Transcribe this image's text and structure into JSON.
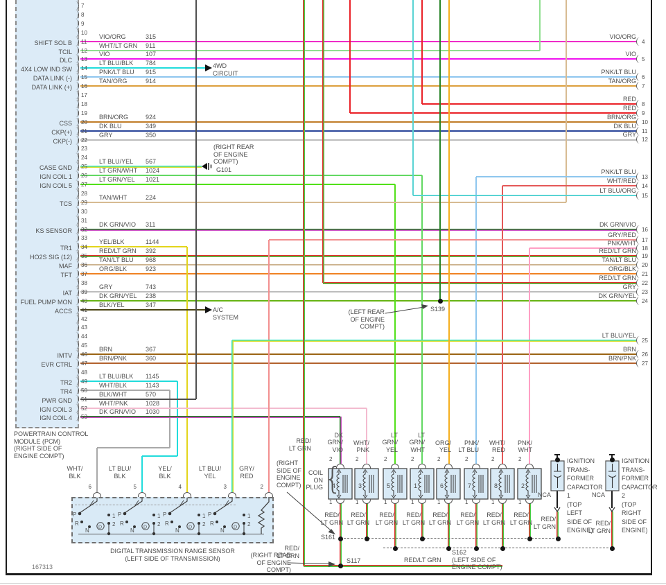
{
  "doc_number": "167313",
  "pcm": {
    "caption": "POWERTRAIN CONTROL\nMODULE (PCM)\n(RIGHT SIDE OF\nENGINE COMPT)",
    "pins": [
      {
        "n": "7"
      },
      {
        "n": "8"
      },
      {
        "n": "9"
      },
      {
        "n": "10"
      },
      {
        "n": "11",
        "label": "SHIFT SOL B",
        "wire": "VIO/ORG",
        "circuit": "315",
        "color": "VIO_ORG"
      },
      {
        "n": "12",
        "label": "TCIL",
        "wire": "WHT/LT GRN",
        "circuit": "911",
        "color": "WHT_LT_GRN"
      },
      {
        "n": "13",
        "label": "DLC",
        "wire": "VIO",
        "circuit": "107",
        "color": "VIO"
      },
      {
        "n": "14",
        "label": "4X4 LOW IND SW",
        "wire": "LT BLU/BLK",
        "circuit": "784",
        "color": "LT_BLU_BLK"
      },
      {
        "n": "15",
        "label": "DATA LINK (-)",
        "wire": "PNK/LT BLU",
        "circuit": "915",
        "color": "PNK_LT_BLU"
      },
      {
        "n": "16",
        "label": "DATA LINK (+)",
        "wire": "TAN/ORG",
        "circuit": "914",
        "color": "TAN_ORG"
      },
      {
        "n": "17"
      },
      {
        "n": "18"
      },
      {
        "n": "19"
      },
      {
        "n": "20",
        "label": "CSS",
        "wire": "BRN/ORG",
        "circuit": "924",
        "color": "BRN_ORG"
      },
      {
        "n": "21",
        "label": "CKP(+)",
        "wire": "DK BLU",
        "circuit": "349",
        "color": "DK_BLU"
      },
      {
        "n": "22",
        "label": "CKP(-)",
        "wire": "GRY",
        "circuit": "350",
        "color": "GRY"
      },
      {
        "n": "23"
      },
      {
        "n": "24"
      },
      {
        "n": "25",
        "label": "CASE GND",
        "wire": "LT BLU/YEL",
        "circuit": "567",
        "color": "LT_BLU_YEL"
      },
      {
        "n": "26",
        "label": "IGN COIL 1",
        "wire": "LT GRN/WHT",
        "circuit": "1024",
        "color": "LT_GRN_WHT"
      },
      {
        "n": "27",
        "label": "IGN COIL 5",
        "wire": "LT GRN/YEL",
        "circuit": "1021",
        "color": "LT_GRN_YEL"
      },
      {
        "n": "28"
      },
      {
        "n": "29",
        "label": "TCS",
        "wire": "TAN/WHT",
        "circuit": "224",
        "color": "TAN_WHT"
      },
      {
        "n": "30"
      },
      {
        "n": "31"
      },
      {
        "n": "32",
        "label": "KS SENSOR",
        "wire": "DK GRN/VIO",
        "circuit": "311",
        "color": "DK_GRN_VIO"
      },
      {
        "n": "33"
      },
      {
        "n": "34",
        "label": "TR1",
        "wire": "YEL/BLK",
        "circuit": "1144",
        "color": "YEL_BLK"
      },
      {
        "n": "35",
        "label": "HO2S SIG (12)",
        "wire": "RED/LT GRN",
        "circuit": "392",
        "color": "RED_LT_GRN"
      },
      {
        "n": "36",
        "label": "MAF",
        "wire": "TAN/LT BLU",
        "circuit": "968",
        "color": "TAN_LT_BLU"
      },
      {
        "n": "37",
        "label": "TFT",
        "wire": "ORG/BLK",
        "circuit": "923",
        "color": "ORG_BLK"
      },
      {
        "n": "38"
      },
      {
        "n": "39",
        "label": "IAT",
        "wire": "GRY",
        "circuit": "743",
        "color": "GRY"
      },
      {
        "n": "40",
        "label": "FUEL PUMP MON",
        "wire": "DK GRN/YEL",
        "circuit": "238",
        "color": "DK_GRN_YEL"
      },
      {
        "n": "41",
        "label": "ACCS",
        "wire": "BLK/YEL",
        "circuit": "347",
        "color": "BLK_YEL"
      },
      {
        "n": "42"
      },
      {
        "n": "43"
      },
      {
        "n": "44"
      },
      {
        "n": "45"
      },
      {
        "n": "46",
        "label": "IMTV",
        "wire": "BRN",
        "circuit": "367",
        "color": "BRN"
      },
      {
        "n": "47",
        "label": "EVR CTRL",
        "wire": "BRN/PNK",
        "circuit": "360",
        "color": "BRN_PNK"
      },
      {
        "n": "48"
      },
      {
        "n": "49",
        "label": "TR2",
        "wire": "LT BLU/BLK",
        "circuit": "1145",
        "color": "LT_BLU_BLK"
      },
      {
        "n": "50",
        "label": "TR4",
        "wire": "WHT/BLK",
        "circuit": "1143",
        "color": "WHT_BLK"
      },
      {
        "n": "51",
        "label": "PWR GND",
        "wire": "BLK/WHT",
        "circuit": "570",
        "color": "BLK_WHT"
      },
      {
        "n": "52",
        "label": "IGN COIL 3",
        "wire": "WHT/PNK",
        "circuit": "1028",
        "color": "WHT_PNK"
      },
      {
        "n": "53",
        "label": "IGN COIL 4",
        "wire": "DK GRN/VIO",
        "circuit": "1030",
        "color": "DK_GRN_VIO"
      }
    ]
  },
  "right_pins": [
    {
      "n": "4",
      "wire": "VIO/ORG"
    },
    {
      "n": "5",
      "wire": "VIO"
    },
    {
      "n": "6",
      "wire": "PNK/LT BLU"
    },
    {
      "n": "7",
      "wire": "TAN/ORG"
    },
    {
      "n": "8",
      "wire": "RED"
    },
    {
      "n": "9",
      "wire": "RED"
    },
    {
      "n": "10",
      "wire": "BRN/ORG"
    },
    {
      "n": "11",
      "wire": "DK BLU"
    },
    {
      "n": "12",
      "wire": "GRY"
    },
    {
      "n": "13",
      "wire": "PNK/LT BLU"
    },
    {
      "n": "14",
      "wire": "WHT/RED"
    },
    {
      "n": "15",
      "wire": "LT BLU/ORG"
    },
    {
      "n": "16",
      "wire": "DK GRN/VIO"
    },
    {
      "n": "17",
      "wire": "GRY/RED"
    },
    {
      "n": "18",
      "wire": "PNK/WHT"
    },
    {
      "n": "19",
      "wire": "RED/LT GRN"
    },
    {
      "n": "20",
      "wire": "TAN/LT BLU"
    },
    {
      "n": "21",
      "wire": "ORG/BLK"
    },
    {
      "n": "22",
      "wire": "RED/LT GRN"
    },
    {
      "n": "23",
      "wire": "GRY"
    },
    {
      "n": "24",
      "wire": "DK GRN/YEL"
    },
    {
      "n": "25",
      "wire": "LT BLU/YEL"
    },
    {
      "n": "26",
      "wire": "BRN"
    },
    {
      "n": "27",
      "wire": "BRN/PNK"
    }
  ],
  "labels": {
    "awd": "4WD\nCIRCUIT",
    "ac": "A/C\nSYSTEM",
    "g101_note": "(RIGHT REAR\nOF ENGINE\nCOMPT)",
    "g101": "G101",
    "s139_note": "(LEFT REAR\nOF ENGINE\nCOMPT)",
    "s139": "S139",
    "s161": "S161",
    "s117": "S117",
    "s162_note": "S162\n(LEFT SIDE OF\nENGINE COMPT)",
    "right_side_note": "(RIGHT\nSIDE OF\nENGINE\nCOMPT)",
    "right_rear_note": "(RIGHT REAR\nOF ENGINE\nCOMPT)",
    "feed_label_top": "RED/\nLT GRN",
    "feed_label_bottom": "RED/\nLT GRN",
    "bus_label": "RED/LT GRN",
    "coil_on_plug": "COIL\nON\nPLUG"
  },
  "coil_on_plug": {
    "pin_top": "2",
    "pin_bottom": "1",
    "bottom_wire": "RED/\nLT GRN",
    "items": [
      {
        "num": "4",
        "wire": "DK\nGRN/\nVIO",
        "color": "DK_GRN_VIO"
      },
      {
        "num": "3",
        "wire": "WHT/\nPNK",
        "color": "WHT_PNK"
      },
      {
        "num": "5",
        "wire": "LT\nGRN/\nYEL",
        "color": "LT_GRN_YEL"
      },
      {
        "num": "1",
        "wire": "LT\nGRN/\nWHT",
        "color": "LT_GRN_WHT"
      },
      {
        "num": "6",
        "wire": "ORG/\nYEL",
        "color": "ORG_YEL"
      },
      {
        "num": "7",
        "wire": "PNK/\nLT BLU",
        "color": "PNK_LT_BLU"
      },
      {
        "num": "8",
        "wire": "WHT/\nRED",
        "color": "WHT_RED"
      },
      {
        "num": "2",
        "wire": "PNK/\nWHT",
        "color": "PNK_WHT"
      }
    ]
  },
  "capacitors": {
    "nca": "NCA",
    "wire": "RED/\nLT GRN",
    "items": [
      {
        "text": "IGNITION\nTRANS-\nFORMER\nCAPACITOR\n1\n(TOP\nLEFT\nSIDE OF\nENGINE)"
      },
      {
        "text": "IGNITION\nTRANS-\nFORMER\nCAPACITOR\n2\n(TOP\nRIGHT\nSIDE OF\nENGINE)"
      }
    ]
  },
  "dtr": {
    "caption": "DIGITAL TRANSMISSION RANGE SENSOR\n(LEFT SIDE OF TRANSMISSION)",
    "positions": {
      "p": "P",
      "r": "R",
      "n": "N",
      "d": "D",
      "one": "1",
      "two": "2"
    },
    "pins": [
      {
        "n": "6",
        "wire": "WHT/\nBLK",
        "color": "WHT_BLK"
      },
      {
        "n": "5",
        "wire": "LT BLU/\nBLK",
        "color": "LT_BLU_BLK"
      },
      {
        "n": "4",
        "wire": "YEL/\nBLK",
        "color": "YEL_BLK"
      },
      {
        "n": "3",
        "wire": "LT BLU/\nYEL",
        "color": "LT_BLU_YEL"
      },
      {
        "n": "2",
        "wire": "GRY/\nRED",
        "color": "GRY_RED"
      }
    ]
  },
  "wire_colors": {
    "VIO_ORG": "#ee2cc8",
    "WHT_LT_GRN": "#8fdf8f",
    "VIO": "#f013ef",
    "LT_BLU_BLK": "#21dcdc",
    "PNK_LT_BLU": "#8ec6ee",
    "TAN_ORG": "#dc9f3c",
    "BRN_ORG": "#c07c28",
    "DK_BLU": "#2a4599",
    "GRY": "#bdbdbd",
    "LT_BLU_YEL": [
      "#2fe3c3",
      "#d8dd2a"
    ],
    "LT_GRN_WHT": "#62d862",
    "LT_GRN_YEL": "#52e019",
    "TAN_WHT": "#d7bb92",
    "DK_GRN_VIO": [
      "#1d7a1d",
      "#cc4fc4"
    ],
    "YEL_BLK": "#e3d51b",
    "RED_LT_GRN": [
      "#e33030",
      "#44cf44"
    ],
    "TAN_LT_BLU": "#cdb491",
    "ORG_BLK": "#f08223",
    "DK_GRN_YEL": "#66b414",
    "BLK_YEL": "#4a4413",
    "BRN": "#9a6414",
    "BRN_PNK": "#b2622d",
    "WHT_BLK": "#a9a9a9",
    "BLK_WHT": "#4f4f4f",
    "WHT_PNK": "#f3bbcf",
    "RED": "#ea2127",
    "GRY_RED": "#f28f8f",
    "WHT_RED": "#e45858",
    "PNK_WHT": "#ff9fc4",
    "ORG_YEL": "#f5af1e",
    "LT_BLU_ORG": "#59d3d3",
    "DK_GRN": "#268426",
    "BLK": "#1c1c1c"
  }
}
